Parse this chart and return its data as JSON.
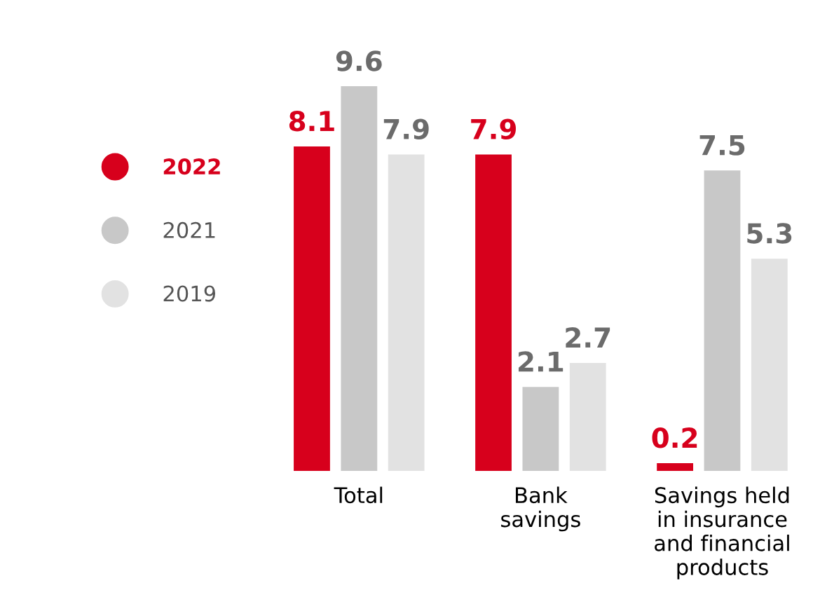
{
  "chart_data": {
    "type": "bar",
    "categories": [
      "Total",
      "Bank\nsavings",
      "Savings held\nin insurance\nand financial\nproducts"
    ],
    "series": [
      {
        "name": "2022",
        "color": "#d7001c",
        "values": [
          8.1,
          7.9,
          0.2
        ]
      },
      {
        "name": "2021",
        "color": "#c8c8c8",
        "values": [
          9.6,
          2.1,
          7.5
        ]
      },
      {
        "name": "2019",
        "color": "#e2e2e2",
        "values": [
          7.9,
          2.7,
          5.3
        ]
      }
    ],
    "data_labels": true,
    "legend": "left",
    "grid": false
  }
}
